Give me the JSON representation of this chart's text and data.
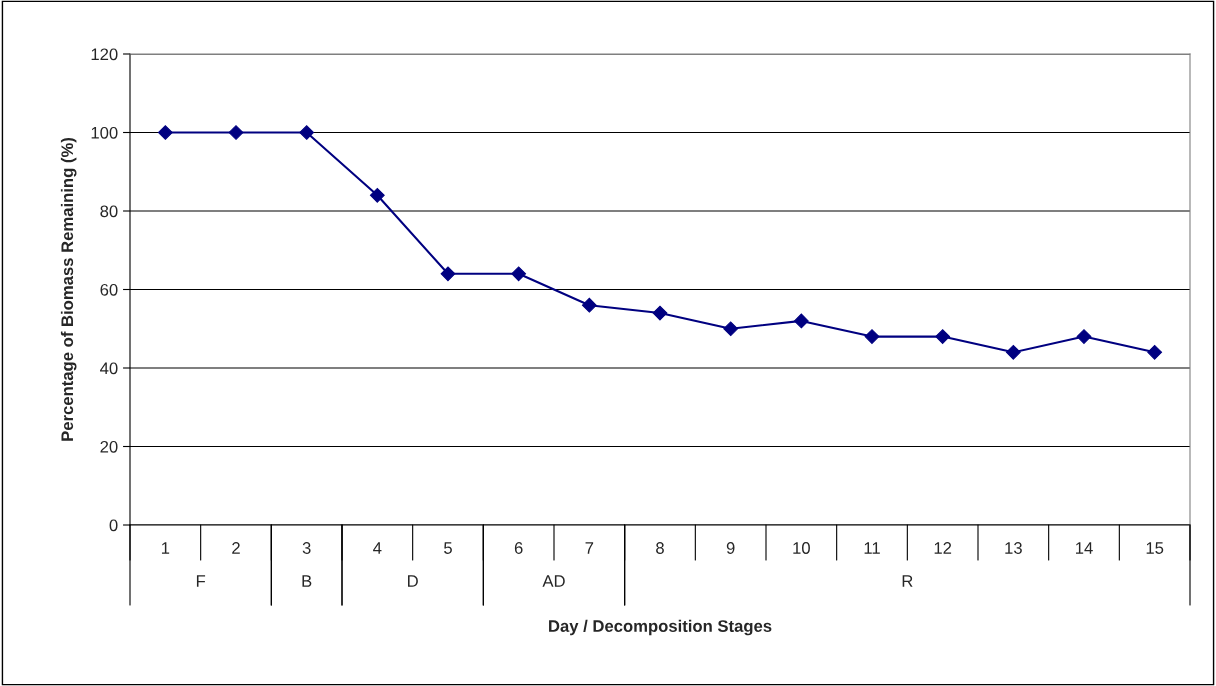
{
  "chart_data": {
    "type": "line",
    "xlabel": "Day / Decomposition Stages",
    "ylabel": "Percentage of Biomass Remaining (%)",
    "categories": [
      "1",
      "2",
      "3",
      "4",
      "5",
      "6",
      "7",
      "8",
      "9",
      "10",
      "11",
      "12",
      "13",
      "14",
      "15"
    ],
    "series": [
      {
        "color": "#000080",
        "values": [
          100,
          100,
          100,
          84,
          64,
          64,
          56,
          54,
          50,
          52,
          48,
          48,
          44,
          48,
          44
        ]
      }
    ],
    "annotations": [
      "F",
      "B",
      "D",
      "AD",
      "R"
    ],
    "ylim": [
      0,
      120
    ],
    "yticks": [
      0,
      20,
      40,
      60,
      80,
      100,
      120
    ],
    "grid": "y",
    "marker": "diamond",
    "line_style": "solid",
    "legend": false
  }
}
